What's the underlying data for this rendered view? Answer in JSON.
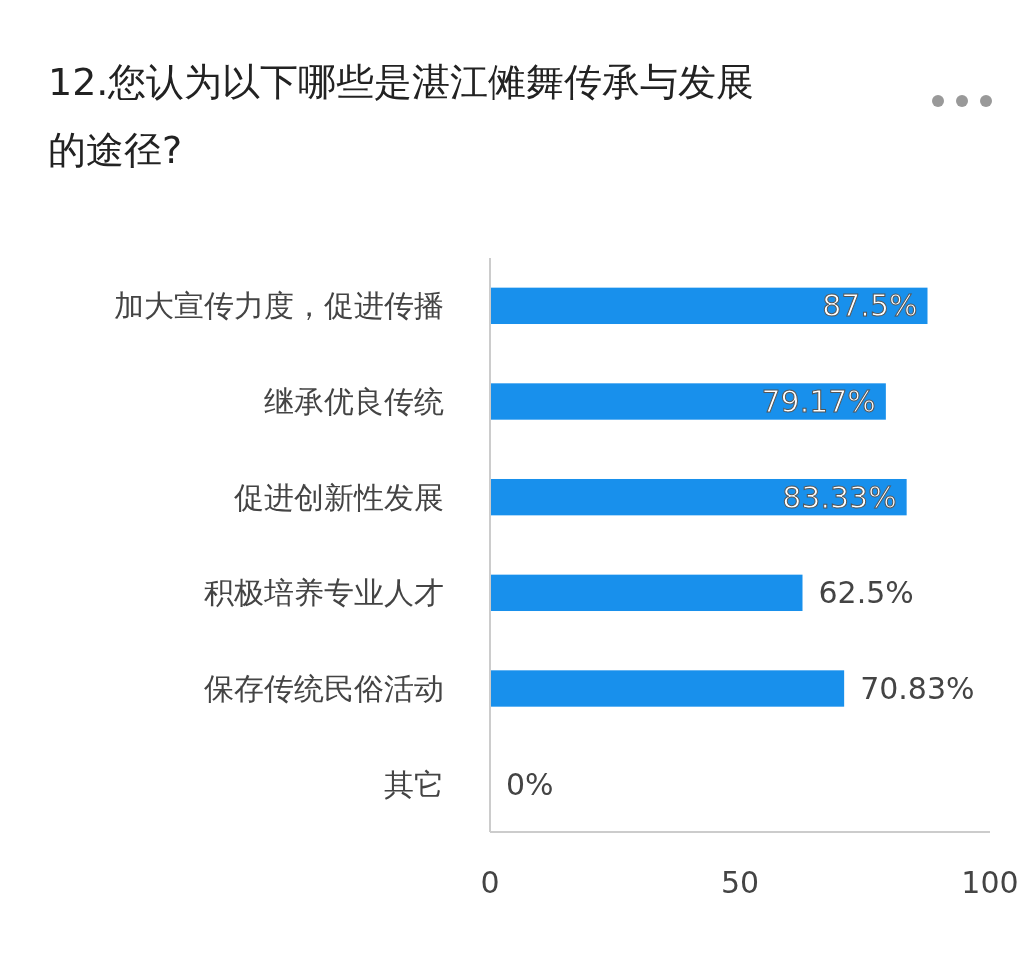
{
  "chart_data": {
    "type": "bar",
    "orientation": "horizontal",
    "title": "12.您认为以下哪些是湛江傩舞传承与发展的途径?",
    "categories": [
      "加大宣传力度，促进传播",
      "继承优良传统",
      "促进创新性发展",
      "积极培养专业人才",
      "保存传统民俗活动",
      "其它"
    ],
    "values": [
      87.5,
      79.17,
      83.33,
      62.5,
      70.83,
      0
    ],
    "value_labels": [
      "87.5%",
      "79.17%",
      "83.33%",
      "62.5%",
      "70.83%",
      "0%"
    ],
    "color": "#1890ec",
    "xlim": [
      0,
      100
    ],
    "xticks": [
      0,
      50,
      100
    ],
    "grid": false
  }
}
